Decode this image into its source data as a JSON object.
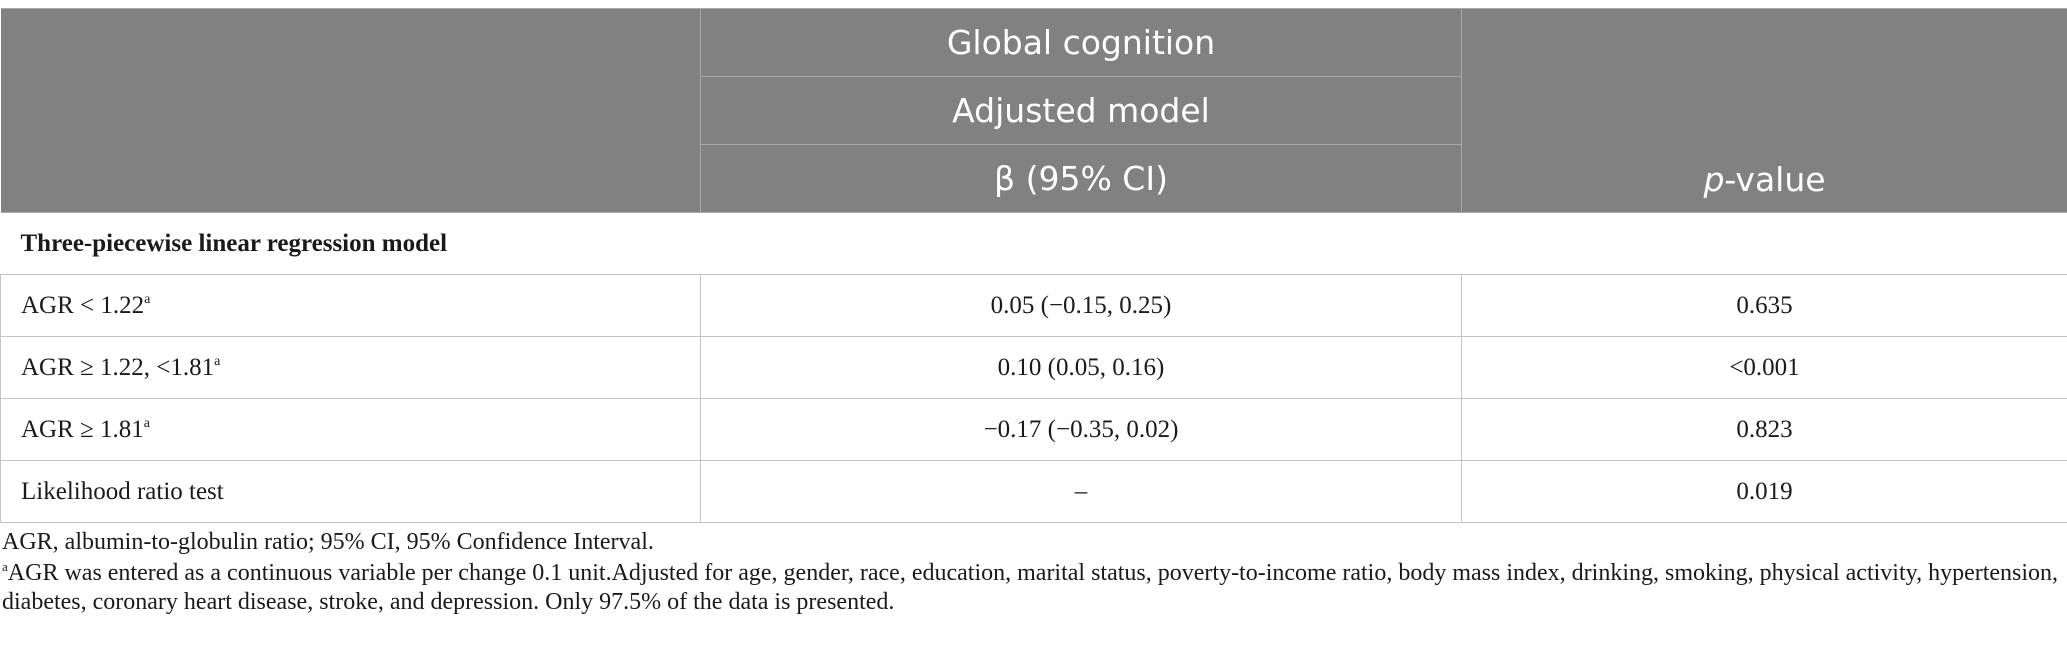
{
  "table": {
    "header": {
      "group_label": "Global cognition",
      "model_label": "Adjusted model",
      "estimate_label": "β (95% CI)",
      "p_label_italic": "p",
      "p_label_rest": "-value"
    },
    "section_title": "Three-piecewise linear regression model",
    "rows": [
      {
        "label": "AGR < 1.22",
        "sup": "a",
        "estimate": "0.05 (−0.15, 0.25)",
        "p": "0.635"
      },
      {
        "label": "AGR ≥ 1.22, <1.81",
        "sup": "a",
        "estimate": "0.10 (0.05, 0.16)",
        "p": "<0.001"
      },
      {
        "label": "AGR ≥ 1.81",
        "sup": "a",
        "estimate": "−0.17 (−0.35, 0.02)",
        "p": "0.823"
      },
      {
        "label": "Likelihood ratio test",
        "sup": "",
        "estimate": "–",
        "p": "0.019"
      }
    ]
  },
  "notes": {
    "abbreviations": "AGR, albumin-to-globulin ratio; 95% CI, 95% Confidence Interval.",
    "footnote_marker": "a",
    "footnote_text": "AGR was entered as a continuous variable per change 0.1 unit.Adjusted for age, gender, race, education, marital status, poverty-to-income ratio, body mass index, drinking, smoking, physical activity, hypertension, diabetes, coronary heart disease, stroke, and depression. Only 97.5% of the data is presented."
  },
  "colors": {
    "header_bg": "#808180",
    "header_text": "#ffffff",
    "grid": "#c4c4c4"
  }
}
